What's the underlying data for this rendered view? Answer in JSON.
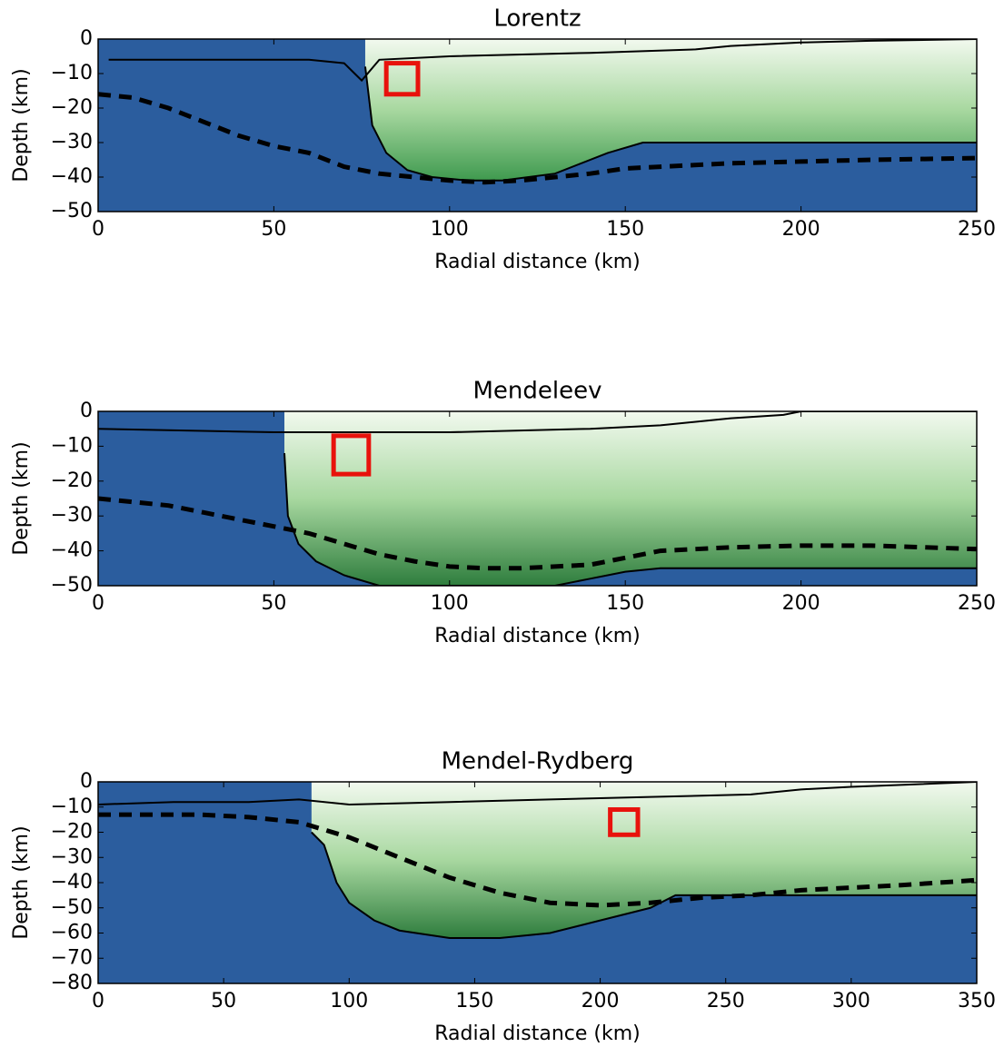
{
  "chart_data": [
    {
      "type": "section",
      "title": "Lorentz",
      "x_label": "Radial distance (km)",
      "y_label": "Depth (km)",
      "xlim": [
        0,
        250
      ],
      "ylim": [
        -50,
        0
      ],
      "xticks": [
        0,
        50,
        100,
        150,
        200,
        250
      ],
      "yticks": [
        0,
        -10,
        -20,
        -30,
        -40,
        -50
      ],
      "background": "#2b5d9e",
      "series": [
        {
          "style": "solid",
          "color": "#000000",
          "fill": [
            "#f2f9ef",
            "#a8d8a0",
            "#3f9a4f"
          ],
          "x": [
            76,
            78,
            82,
            88,
            95,
            105,
            115,
            130,
            145,
            155,
            160,
            250
          ],
          "values": [
            -8,
            -25,
            -33,
            -38,
            -40,
            -41,
            -41,
            -39,
            -33,
            -30,
            -30,
            -30
          ]
        },
        {
          "style": "solid",
          "color": "#000000",
          "x": [
            3,
            20,
            40,
            60,
            70,
            75,
            80,
            100,
            140,
            170,
            180,
            200,
            220,
            250
          ],
          "values": [
            -6,
            -6,
            -6,
            -6,
            -7,
            -12,
            -6,
            -5,
            -4,
            -3,
            -2,
            -1,
            -0.5,
            0
          ]
        },
        {
          "style": "dashed",
          "color": "#000000",
          "x": [
            0,
            10,
            20,
            30,
            40,
            50,
            60,
            70,
            80,
            90,
            100,
            110,
            120,
            130,
            140,
            150,
            160,
            180,
            200,
            220,
            250
          ],
          "values": [
            -16,
            -17,
            -20,
            -24,
            -28,
            -31,
            -33,
            -37,
            -39,
            -40,
            -41,
            -41.5,
            -41,
            -40,
            -39,
            -37.5,
            -37,
            -36,
            -35.5,
            -35,
            -34.5
          ]
        }
      ],
      "box": {
        "color": "#e8120c",
        "x": [
          82,
          91
        ],
        "y": [
          -7,
          -16
        ]
      }
    },
    {
      "type": "section",
      "title": "Mendeleev",
      "x_label": "Radial distance (km)",
      "y_label": "Depth (km)",
      "xlim": [
        0,
        250
      ],
      "ylim": [
        -50,
        0
      ],
      "xticks": [
        0,
        50,
        100,
        150,
        200,
        250
      ],
      "yticks": [
        0,
        -10,
        -20,
        -30,
        -40,
        -50
      ],
      "background": "#2b5d9e",
      "series": [
        {
          "style": "solid",
          "color": "#000000",
          "fill": [
            "#f2f9ef",
            "#a8d8a0",
            "#2e7d3d"
          ],
          "x": [
            53,
            54,
            57,
            62,
            70,
            80,
            100,
            120,
            130,
            140,
            150,
            160,
            250
          ],
          "values": [
            -12,
            -30,
            -38,
            -43,
            -47,
            -50,
            -50,
            -50,
            -50,
            -48,
            -46,
            -45,
            -45
          ]
        },
        {
          "style": "solid",
          "color": "#000000",
          "x": [
            0,
            50,
            100,
            140,
            160,
            180,
            195,
            200,
            250
          ],
          "values": [
            -5,
            -6,
            -6,
            -5,
            -4,
            -2,
            -1,
            0,
            0
          ]
        },
        {
          "style": "dashed",
          "color": "#000000",
          "x": [
            0,
            10,
            20,
            30,
            40,
            50,
            60,
            70,
            80,
            90,
            100,
            110,
            120,
            130,
            140,
            150,
            160,
            180,
            200,
            220,
            250
          ],
          "values": [
            -25,
            -26,
            -27,
            -29,
            -31,
            -33,
            -35,
            -38,
            -41,
            -43,
            -44.5,
            -45,
            -45,
            -44.5,
            -44,
            -42,
            -40,
            -39,
            -38.5,
            -38.5,
            -39.5
          ]
        }
      ],
      "box": {
        "color": "#e8120c",
        "x": [
          67,
          77
        ],
        "y": [
          -7,
          -18
        ]
      }
    },
    {
      "type": "section",
      "title": "Mendel-Rydberg",
      "x_label": "Radial distance (km)",
      "y_label": "Depth (km)",
      "xlim": [
        0,
        350
      ],
      "ylim": [
        -80,
        0
      ],
      "xticks": [
        0,
        50,
        100,
        150,
        200,
        250,
        300,
        350
      ],
      "yticks": [
        0,
        -10,
        -20,
        -30,
        -40,
        -50,
        -60,
        -70,
        -80
      ],
      "background": "#2b5d9e",
      "series": [
        {
          "style": "solid",
          "color": "#000000",
          "fill": [
            "#f2f9ef",
            "#a8d8a0",
            "#2e7d3d"
          ],
          "x": [
            85,
            90,
            95,
            100,
            110,
            120,
            140,
            160,
            180,
            200,
            220,
            230,
            350
          ],
          "values": [
            -20,
            -25,
            -40,
            -48,
            -55,
            -59,
            -62,
            -62,
            -60,
            -55,
            -50,
            -45,
            -45
          ]
        },
        {
          "style": "solid",
          "color": "#000000",
          "x": [
            0,
            30,
            60,
            80,
            100,
            140,
            180,
            220,
            260,
            280,
            300,
            350
          ],
          "values": [
            -9,
            -8,
            -8,
            -7,
            -9,
            -8,
            -7,
            -6,
            -5,
            -3,
            -2,
            0
          ]
        },
        {
          "style": "dashed",
          "color": "#000000",
          "x": [
            0,
            20,
            40,
            60,
            80,
            100,
            120,
            140,
            160,
            180,
            200,
            220,
            240,
            260,
            280,
            300,
            320,
            350
          ],
          "values": [
            -13,
            -13,
            -13,
            -14,
            -16,
            -22,
            -30,
            -38,
            -44,
            -48,
            -49,
            -48,
            -46,
            -45,
            -43,
            -42,
            -41,
            -39
          ]
        }
      ],
      "box": {
        "color": "#e8120c",
        "x": [
          204,
          215
        ],
        "y": [
          -11,
          -21
        ]
      }
    }
  ]
}
